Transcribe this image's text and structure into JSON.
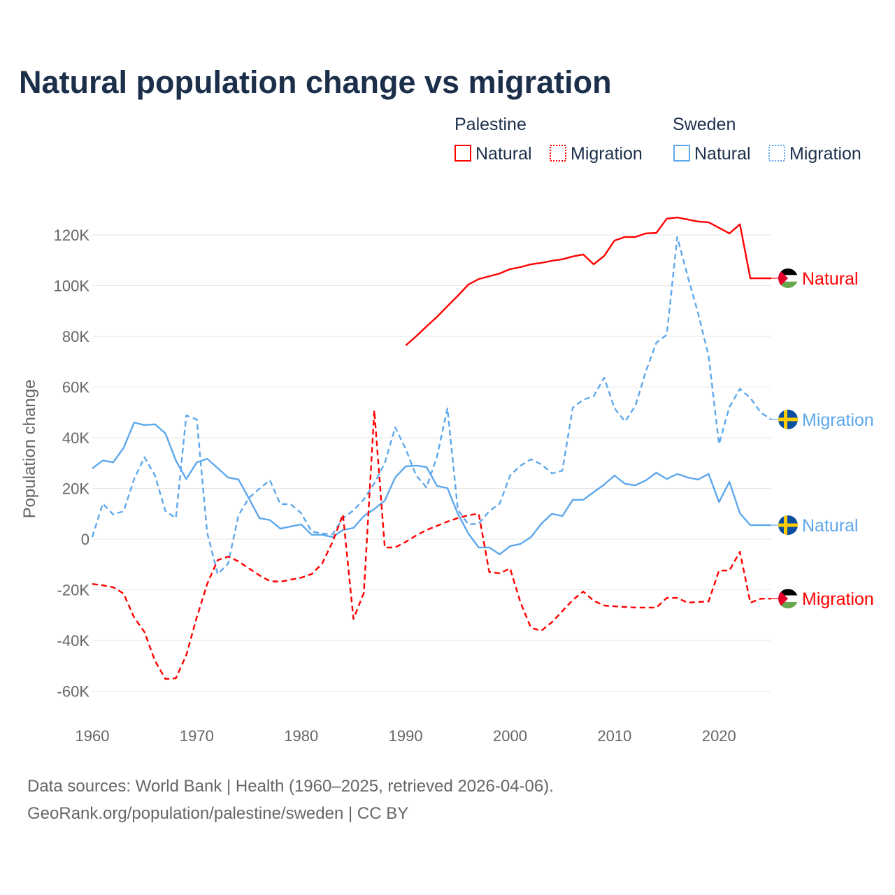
{
  "chart_data": {
    "type": "line",
    "title": "Natural population change vs migration",
    "ylabel": "Population change",
    "xlabel": "",
    "xlim": [
      1960,
      2025
    ],
    "ylim": [
      -70000,
      130000
    ],
    "x_ticks": [
      1960,
      1970,
      1980,
      1990,
      2000,
      2010,
      2020
    ],
    "x_tick_labels": [
      "1960",
      "1970",
      "1980",
      "1990",
      "2000",
      "2010",
      "2020"
    ],
    "y_ticks": [
      -60000,
      -40000,
      -20000,
      0,
      20000,
      40000,
      60000,
      80000,
      100000,
      120000
    ],
    "y_tick_labels": [
      "-60K",
      "-40K",
      "-20K",
      "0",
      "20K",
      "40K",
      "60K",
      "80K",
      "100K",
      "120K"
    ],
    "grid": true,
    "legend": {
      "placement": "top-right",
      "groups": [
        {
          "country": "Palestine",
          "items": [
            "Natural",
            "Migration"
          ]
        },
        {
          "country": "Sweden",
          "items": [
            "Natural",
            "Migration"
          ]
        }
      ]
    },
    "colors": {
      "Palestine": "#ff0000",
      "Sweden": "#5ea8ec"
    },
    "series": [
      {
        "name": "Palestine Natural",
        "country": "Palestine",
        "kind": "Natural",
        "label": "Natural",
        "start": 1990,
        "values": [
          76400,
          80000,
          83900,
          87700,
          91900,
          96000,
          100400,
          102600,
          103700,
          104800,
          106500,
          107300,
          108400,
          109000,
          109800,
          110400,
          111500,
          112300,
          108400,
          111700,
          117800,
          119200,
          119200,
          120600,
          120800,
          126400,
          126900,
          126100,
          125300,
          125000,
          122800,
          120600,
          124200,
          102900,
          102900,
          102900
        ]
      },
      {
        "name": "Sweden Migration",
        "country": "Sweden",
        "kind": "Migration",
        "label": "Migration",
        "start": 1960,
        "values": [
          800,
          14000,
          9700,
          11000,
          23700,
          32300,
          25100,
          11000,
          8300,
          48800,
          47200,
          2500,
          -13800,
          -9700,
          9400,
          16300,
          19900,
          23200,
          13800,
          13800,
          10200,
          3000,
          2200,
          1900,
          8300,
          11300,
          15700,
          22000,
          30000,
          44100,
          35600,
          25100,
          20400,
          32600,
          51600,
          11600,
          5800,
          6100,
          11000,
          14000,
          25100,
          29000,
          31500,
          29500,
          25900,
          27000,
          51900,
          55000,
          56300,
          63700,
          51600,
          46400,
          52700,
          66200,
          77500,
          80600,
          119200,
          103700,
          89100,
          72300,
          37500,
          52100,
          59300,
          55700,
          49900,
          47200
        ]
      },
      {
        "name": "Sweden Natural",
        "country": "Sweden",
        "kind": "Natural",
        "label": "Natural",
        "start": 1960,
        "values": [
          27900,
          31000,
          30300,
          36000,
          46000,
          45000,
          45300,
          41700,
          31000,
          23700,
          30300,
          31700,
          28000,
          24300,
          23500,
          16000,
          8300,
          7500,
          4100,
          5000,
          5800,
          1700,
          1700,
          800,
          3600,
          4400,
          9100,
          11900,
          15200,
          24300,
          28700,
          29000,
          28400,
          21000,
          20100,
          10000,
          2200,
          -3300,
          -3300,
          -6000,
          -2800,
          -1900,
          800,
          6100,
          10000,
          9100,
          15500,
          15500,
          18500,
          21500,
          25100,
          21800,
          21200,
          23200,
          26200,
          23700,
          25700,
          24300,
          23500,
          25700,
          14600,
          22600,
          10200,
          5500,
          5500,
          5500
        ]
      },
      {
        "name": "Palestine Migration",
        "country": "Palestine",
        "kind": "Migration",
        "label": "Migration",
        "start": 1960,
        "values": [
          -17700,
          -18200,
          -19000,
          -21500,
          -30900,
          -36700,
          -48000,
          -55200,
          -54900,
          -45800,
          -30900,
          -17700,
          -8300,
          -6900,
          -8800,
          -11600,
          -14300,
          -16600,
          -16800,
          -16000,
          -15200,
          -13800,
          -9700,
          -1100,
          9700,
          -31500,
          -21200,
          50800,
          -3300,
          -3300,
          -1100,
          1400,
          3600,
          5200,
          6900,
          8300,
          9400,
          10000,
          -13000,
          -13500,
          -11600,
          -25100,
          -35000,
          -36100,
          -32800,
          -28400,
          -24000,
          -20700,
          -24300,
          -26200,
          -26500,
          -26800,
          -27000,
          -27000,
          -27000,
          -23200,
          -23200,
          -25100,
          -24800,
          -24600,
          -12400,
          -12400,
          -5000,
          -25100,
          -23500,
          -23500
        ]
      }
    ],
    "source_lines": [
      "Data sources: World Bank | Health (1960–2025, retrieved 2026-04-06).",
      "GeoRank.org/population/palestine/sweden | CC BY"
    ]
  }
}
